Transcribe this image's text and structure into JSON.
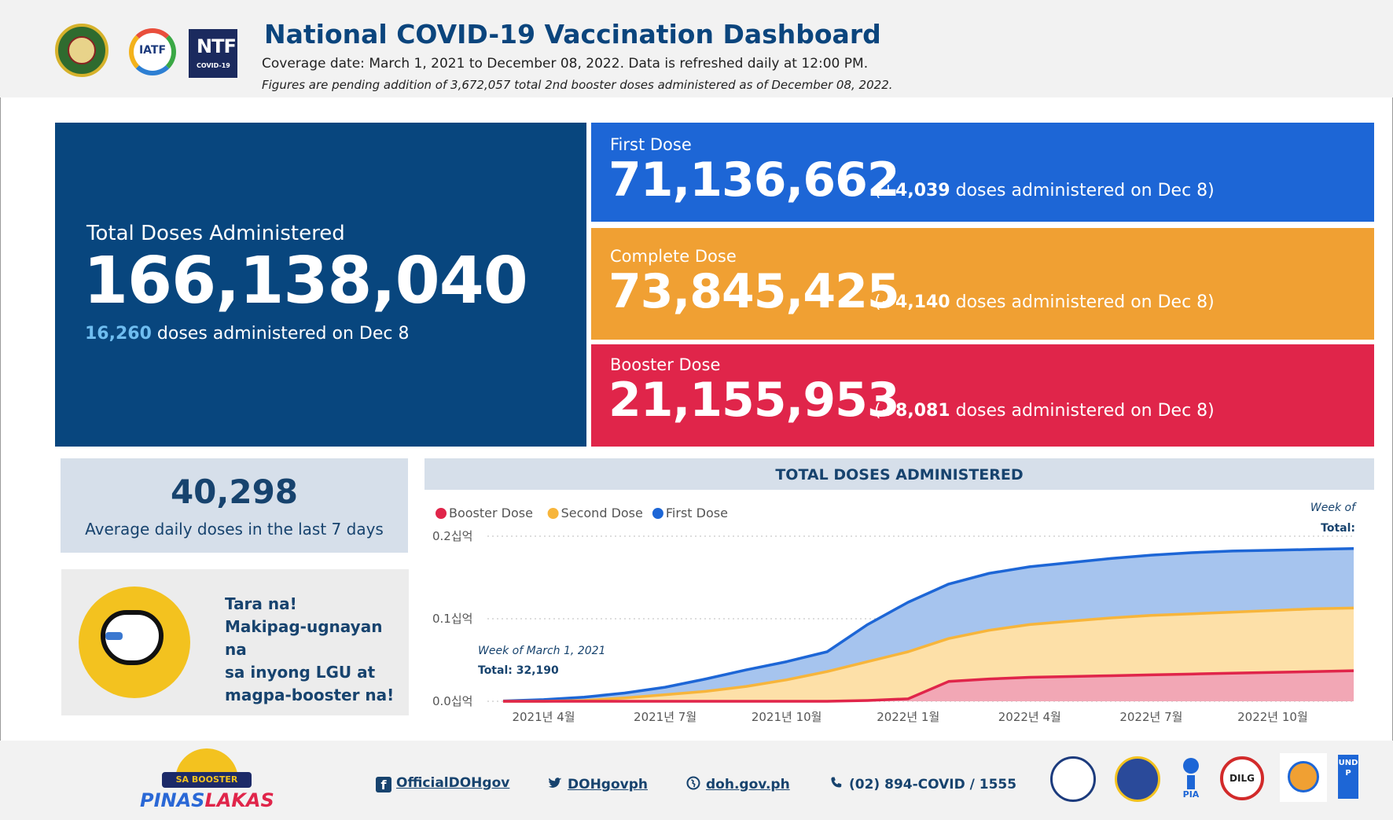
{
  "header": {
    "title": "National COVID-19 Vaccination Dashboard",
    "coverage": "Coverage date: March 1, 2021 to December 08, 2022. Data is refreshed daily at 12:00 PM.",
    "note": "Figures are pending addition of 3,672,057 total 2nd booster doses administered as of December 08, 2022.",
    "logo_iatf": "IATF",
    "logo_ntf": "NTF",
    "logo_ntf_sub": "COVID-19"
  },
  "total": {
    "label": "Total Doses Administered",
    "value": "166,138,040",
    "daily": "16,260",
    "daily_text": "doses administered on Dec 8"
  },
  "doses": {
    "first": {
      "label": "First Dose",
      "value": "71,136,662",
      "prefix": "(+",
      "daily": "4,039",
      "suffix": "doses administered on Dec 8)",
      "color": "#1d66d6"
    },
    "complete": {
      "label": "Complete Dose",
      "value": "73,845,425",
      "prefix": "(+",
      "daily": "4,140",
      "suffix": "doses administered on Dec 8)",
      "color": "#f0a033"
    },
    "booster": {
      "label": "Booster Dose",
      "value": "21,155,953",
      "prefix": "(+",
      "daily": "8,081",
      "suffix": "doses administered on Dec 8)",
      "color": "#e0254a"
    }
  },
  "average": {
    "value": "40,298",
    "label": "Average daily doses in the last 7 days"
  },
  "promo": {
    "line1": "Tara na!",
    "line2": "Makipag-ugnayan na",
    "line3": "sa inyong LGU at",
    "line4": "magpa-booster na!"
  },
  "chart_title": "TOTAL DOSES ADMINISTERED",
  "chart_data": {
    "type": "area",
    "title": "TOTAL DOSES ADMINISTERED",
    "stacked": true,
    "xlabel": "",
    "ylabel": "",
    "ylim": [
      0,
      0.2
    ],
    "yunit": "십억",
    "yticks": [
      "0.0십억",
      "0.1십억",
      "0.2십억"
    ],
    "ytick_values": [
      0.0,
      0.1,
      0.2
    ],
    "xticks": [
      "2021년 4월",
      "2021년 7월",
      "2021년 10월",
      "2022년 1월",
      "2022년 4월",
      "2022년 7월",
      "2022년 10월"
    ],
    "x": [
      "2021-03",
      "2021-04",
      "2021-05",
      "2021-06",
      "2021-07",
      "2021-08",
      "2021-09",
      "2021-10",
      "2021-11",
      "2021-12",
      "2022-01",
      "2022-02",
      "2022-03",
      "2022-04",
      "2022-05",
      "2022-06",
      "2022-07",
      "2022-08",
      "2022-09",
      "2022-10",
      "2022-11",
      "2022-12"
    ],
    "series": [
      {
        "name": "Booster Dose",
        "color": "#e0254a",
        "fill": "#f2a7b5",
        "values": [
          0,
          0,
          0,
          0,
          0,
          0,
          0,
          0,
          0,
          0.001,
          0.003,
          0.024,
          0.027,
          0.029,
          0.03,
          0.031,
          0.032,
          0.033,
          0.034,
          0.035,
          0.036,
          0.037
        ]
      },
      {
        "name": "Second Dose",
        "color": "#f7b53b",
        "fill": "#fde0a8",
        "values": [
          0,
          0,
          0.001,
          0.004,
          0.008,
          0.012,
          0.018,
          0.026,
          0.036,
          0.048,
          0.06,
          0.076,
          0.086,
          0.093,
          0.097,
          0.101,
          0.104,
          0.106,
          0.108,
          0.11,
          0.112,
          0.113
        ]
      },
      {
        "name": "First Dose",
        "color": "#1d66d6",
        "fill": "#a6c4ee",
        "values": [
          0.0003,
          0.002,
          0.005,
          0.01,
          0.017,
          0.027,
          0.038,
          0.048,
          0.06,
          0.093,
          0.12,
          0.142,
          0.155,
          0.163,
          0.168,
          0.173,
          0.177,
          0.18,
          0.182,
          0.183,
          0.184,
          0.185
        ]
      }
    ],
    "legend_position": "top-left",
    "annotation_start": {
      "line1": "Week of March 1, 2021",
      "line2": "Total: 32,190"
    },
    "annotation_end": {
      "line1": "Week of",
      "line2": "Total:"
    }
  },
  "footer": {
    "facebook": "OfficialDOHgov",
    "twitter": "DOHgovph",
    "website": "doh.gov.ph",
    "phone": "(02) 894-COVID / 1555",
    "pinas_band": "SA BOOSTER",
    "pinas_word1": "PINAS",
    "pinas_word2": "LAKAS",
    "seal_pia": "PIA",
    "seal_dilg": "DILG",
    "seal_undp": "UNDP"
  }
}
